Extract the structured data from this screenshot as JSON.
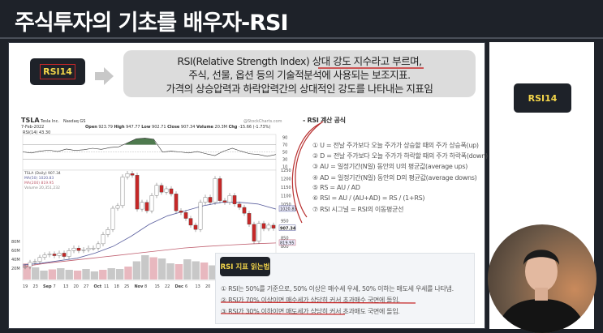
{
  "header": {
    "title": "주식투자의 기초를 배우자-RSI"
  },
  "badge": {
    "label": "RSI14"
  },
  "side_badge": {
    "label": "RSI14"
  },
  "definition": {
    "lines": [
      "RSI(Relative Strength Index) 상대 강도 지수라고 부르며,",
      "주식, 선물, 옵션 등의 기술적분석에 사용되는 보조지표.",
      "가격의 상승압력과 하락압력간의 상대적인 강도를 나타내는 지표임"
    ]
  },
  "formula": {
    "heading": "- RSI 계산 공식",
    "items": [
      "① U = 전날 주가보다 오늘 주가가 상승할 때의 주가 상승폭(up)",
      "② D = 전날 주가보다 오늘 주가가 하락할 때의 주가 하락폭(down)",
      "③ AU = 일정기간(N일) 동안의 U의 평균값(average ups)",
      "④ AD = 일정기간(N일) 동안의 D의 평균값(average downs)",
      "⑤ RS = AU / AD",
      "⑥ RSI = AU / (AU+AD) = RS / (1+RS)",
      "⑦ RSI 시그널 = RSI의 이동평균선"
    ]
  },
  "reading": {
    "label": "RSI 지표 읽는법",
    "lines": [
      "① RSI는 50%를 기준으로, 50% 이상은 매수세 우세, 50% 이하는 매도세 우세를 나타냄.",
      "② RSI가 70% 이상이면 매수세가 상당히 커서 초과매수 국면에 돌입.",
      "③ RSI가 30% 이하이면 매도세가 상당히 커서 초과매도 국면에 돌입."
    ]
  },
  "colors": {
    "background": "#1e2229",
    "badge_text": "#f3d54a",
    "annotation": "#c62828",
    "up": "#ffffff",
    "down": "#c62828",
    "ma50": "#5a5f9e",
    "ma200": "#c06070",
    "rsi_fill": "#4e7a4e"
  },
  "chart_data": {
    "type": "candlestick",
    "ticker": "TSLA",
    "company": "Tesla Inc.",
    "exchange": "Nasdaq GS",
    "watermark": "@StockCharts.com",
    "date": "7-Feb-2022",
    "quote": {
      "open_label": "Open",
      "open": "923.79",
      "high_label": "High",
      "high": "947.77",
      "low_label": "Low",
      "low": "902.71",
      "close_label": "Close",
      "close": "907.34",
      "volume_label": "Volume",
      "volume": "20.3M",
      "chg_label": "Chg",
      "chg": "-15.66 (-1.73%)"
    },
    "rsi": {
      "label": "RSI(14) 43.30",
      "ticks": [
        "90",
        "70",
        "50",
        "30",
        "10"
      ],
      "current": "43.30",
      "values": [
        50,
        47,
        52,
        55,
        51,
        58,
        54,
        56,
        60,
        57,
        62,
        64,
        75,
        86,
        88,
        85,
        50,
        52,
        50,
        47,
        51,
        45,
        40,
        52,
        60,
        52,
        45,
        43,
        38,
        43
      ]
    },
    "legend": [
      "TSLA (Daily) 907.34",
      "MA(50) 1020.83",
      "MA(200) 819.95",
      "Volume 20,351,232"
    ],
    "price_ticks": [
      "1250",
      "1200",
      "1150",
      "1100",
      "1050",
      "950",
      "850",
      "800"
    ],
    "price_tags": [
      "1020.83",
      "907.34",
      "819.95"
    ],
    "volume_ticks": [
      "80M",
      "60M",
      "40M",
      "20M"
    ],
    "x_ticks": [
      "19",
      "23",
      "Sep",
      "7",
      "13",
      "20",
      "27",
      "Oct",
      "11",
      "18",
      "25",
      "Nov",
      "8",
      "15",
      "22",
      "Dec",
      "6",
      "13",
      "20"
    ],
    "closes": [
      680,
      705,
      710,
      735,
      750,
      755,
      745,
      760,
      740,
      775,
      790,
      775,
      780,
      790,
      790,
      815,
      870,
      900,
      1025,
      1040,
      1210,
      1230,
      1220,
      1020,
      1060,
      1010,
      1100,
      1160,
      1120,
      1140,
      1110,
      1010,
      1000,
      965,
      925,
      900,
      1060,
      1090,
      1060,
      1200,
      1070,
      1060,
      1100,
      1050,
      1030,
      995,
      930,
      830,
      935,
      905,
      925,
      907
    ],
    "ma50": [
      690,
      700,
      715,
      730,
      760,
      800,
      860,
      930,
      980,
      1010,
      1040,
      1060,
      1060,
      1050,
      1020
    ],
    "ma200": [
      680,
      700,
      715,
      730,
      745,
      760,
      775,
      790,
      800,
      808,
      815,
      820
    ],
    "volume_m": [
      40,
      30,
      22,
      25,
      28,
      24,
      22,
      26,
      20,
      24,
      28,
      26,
      32,
      45,
      60,
      55,
      52,
      40,
      38,
      50,
      45,
      42,
      35,
      38,
      40,
      36,
      42,
      38,
      35,
      40
    ]
  }
}
